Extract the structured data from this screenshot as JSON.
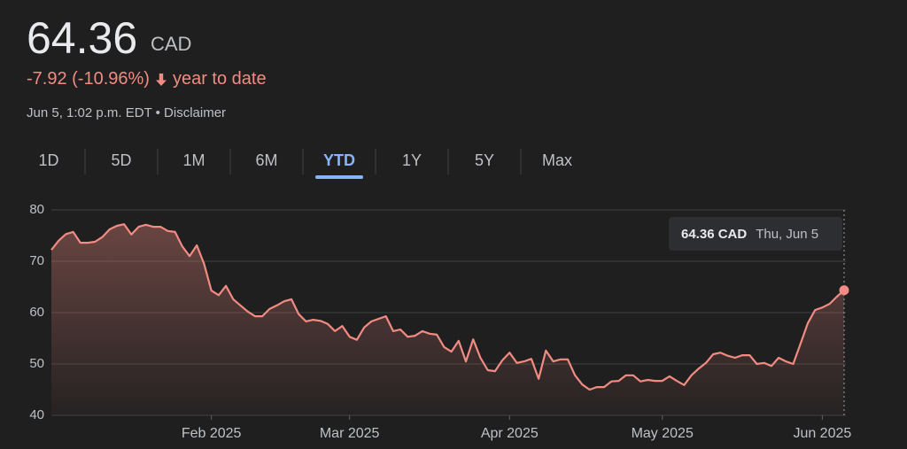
{
  "header": {
    "price": "64.36",
    "currency": "CAD",
    "change": "-7.92 (-10.96%)",
    "change_period": "year to date",
    "timestamp": "Jun 5, 1:02 p.m. EDT • Disclaimer"
  },
  "tabs": [
    "1D",
    "5D",
    "1M",
    "6M",
    "YTD",
    "1Y",
    "5Y",
    "Max"
  ],
  "selected_tab": "YTD",
  "tooltip": {
    "value_label": "64.36 CAD",
    "date": "Thu, Jun 5"
  },
  "chart_data": {
    "type": "line",
    "color": "#f28b82",
    "values": [
      72.2,
      74,
      75.3,
      75.7,
      73.6,
      73.6,
      73.8,
      74.7,
      76.2,
      76.9,
      77.2,
      75.2,
      76.7,
      77.1,
      76.7,
      76.7,
      75.9,
      75.7,
      72.9,
      71,
      73.1,
      69.5,
      64.3,
      63.4,
      65.2,
      62.6,
      61.4,
      60.2,
      59.3,
      59.3,
      60.7,
      61.4,
      62.2,
      62.6,
      59.7,
      58.3,
      58.6,
      58.4,
      57.8,
      56.4,
      57.4,
      55.3,
      54.7,
      57.1,
      58.3,
      58.8,
      59.3,
      56.4,
      56.7,
      55.3,
      55.5,
      56.4,
      55.9,
      55.7,
      53.3,
      52.4,
      54.5,
      50.5,
      54.8,
      51.2,
      48.8,
      48.6,
      50.7,
      52.2,
      50.2,
      50.5,
      51,
      47.1,
      52.6,
      50.5,
      50.9,
      50.9,
      47.8,
      46,
      45,
      45.5,
      45.5,
      46.6,
      46.7,
      47.8,
      47.8,
      46.6,
      46.9,
      46.7,
      46.7,
      47.6,
      46.7,
      45.9,
      47.8,
      49.1,
      50.2,
      51.9,
      52.2,
      51.6,
      51.2,
      51.7,
      51.7,
      50,
      50.2,
      49.6,
      51.2,
      50.5,
      50,
      53.9,
      57.9,
      60.5,
      61,
      61.7,
      63.1,
      64.36
    ],
    "xlim": [
      0,
      109
    ],
    "xticks": [
      {
        "value": 22,
        "label": "Feb 2025"
      },
      {
        "value": 41,
        "label": "Mar 2025"
      },
      {
        "value": 63,
        "label": "Apr 2025"
      },
      {
        "value": 84,
        "label": "May 2025"
      },
      {
        "value": 106,
        "label": "Jun 2025"
      }
    ],
    "ylim": [
      40,
      80
    ],
    "yticks": [
      40,
      50,
      60,
      70,
      80
    ],
    "grid": true
  }
}
